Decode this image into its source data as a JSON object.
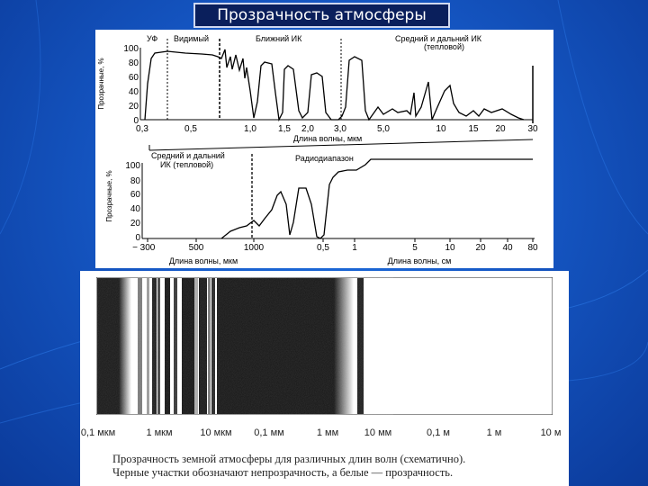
{
  "slide": {
    "title": "Прозрачность атмосферы"
  },
  "top_chart": {
    "ylabel": "Прозрачные, %",
    "yticks": [
      "100",
      "80",
      "60",
      "40",
      "20",
      "0"
    ],
    "xticks": [
      "0,3",
      "0,5",
      "1,0",
      "1,5",
      "2,0",
      "3,0",
      "5,0",
      "10",
      "15",
      "20",
      "30"
    ],
    "xlabel": "Длина волны, мкм",
    "regions": [
      "УФ",
      "Видимый",
      "Ближний ИК",
      "Средний и дальний ИК",
      "(тепловой)"
    ]
  },
  "bottom_chart": {
    "ylabel": "Прозрачные, %",
    "yticks": [
      "100",
      "80",
      "60",
      "40",
      "20",
      "0"
    ],
    "xticks_left": [
      "300",
      "500",
      "1000",
      "0,5",
      "1",
      "5",
      "10",
      "20",
      "40",
      "80"
    ],
    "neg": "−",
    "xlabel_left": "Длина волны, мкм",
    "xlabel_right": "Длина волны, см",
    "region_left_1": "Средний и дальний",
    "region_left_2": "ИК (тепловой)",
    "region_right": "Радиодиапазон"
  },
  "band_figure": {
    "scale": [
      "0,1 мкм",
      "1 мкм",
      "10 мкм",
      "0,1 мм",
      "1 мм",
      "10 мм",
      "0,1 м",
      "1 м",
      "10 м"
    ],
    "caption_line1": "Прозрачность земной атмосферы для различных длин волн (схематично).",
    "caption_line2": "Черные участки обозначают непрозрачность, а белые — прозрачность."
  },
  "colors": {
    "background": "#1557c4",
    "title_bg": "#0a1f5c"
  }
}
